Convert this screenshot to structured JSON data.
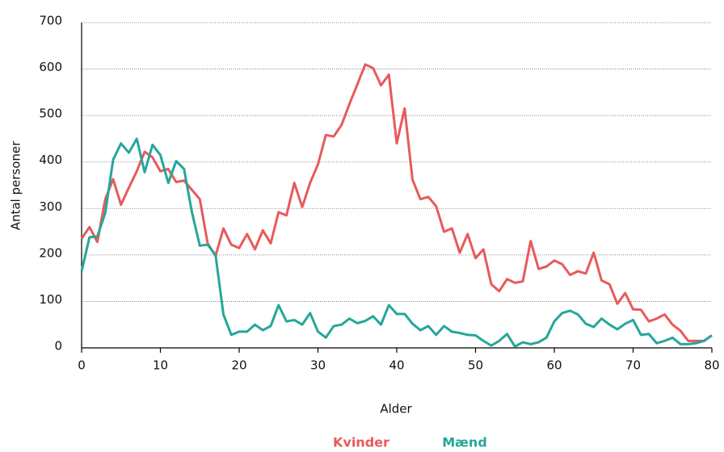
{
  "chart_data": {
    "type": "line",
    "x_label": "Alder",
    "y_label": "Antal personer",
    "x": [
      0,
      1,
      2,
      3,
      4,
      5,
      6,
      7,
      8,
      9,
      10,
      11,
      12,
      13,
      14,
      15,
      16,
      17,
      18,
      19,
      20,
      21,
      22,
      23,
      24,
      25,
      26,
      27,
      28,
      29,
      30,
      31,
      32,
      33,
      34,
      35,
      36,
      37,
      38,
      39,
      40,
      41,
      42,
      43,
      44,
      45,
      46,
      47,
      48,
      49,
      50,
      51,
      52,
      53,
      54,
      55,
      56,
      57,
      58,
      59,
      60,
      61,
      62,
      63,
      64,
      65,
      66,
      67,
      68,
      69,
      70,
      71,
      72,
      73,
      74,
      75,
      76,
      77,
      78,
      79,
      80
    ],
    "series": [
      {
        "name": "Kvinder",
        "color": "#e85a5a",
        "values": [
          235,
          260,
          228,
          320,
          363,
          308,
          345,
          380,
          422,
          410,
          380,
          385,
          357,
          360,
          340,
          320,
          225,
          198,
          257,
          222,
          215,
          245,
          212,
          253,
          225,
          292,
          285,
          355,
          303,
          355,
          395,
          458,
          455,
          480,
          525,
          567,
          610,
          602,
          565,
          588,
          440,
          515,
          362,
          320,
          325,
          305,
          250,
          257,
          205,
          245,
          193,
          212,
          137,
          122,
          148,
          140,
          143,
          230,
          170,
          175,
          188,
          180,
          157,
          165,
          160,
          205,
          145,
          137,
          95,
          118,
          83,
          82,
          57,
          63,
          72,
          50,
          37,
          15,
          15,
          15,
          27
        ]
      },
      {
        "name": "Mænd",
        "color": "#26a69a",
        "values": [
          165,
          238,
          240,
          290,
          405,
          440,
          420,
          450,
          378,
          437,
          415,
          355,
          402,
          385,
          292,
          220,
          222,
          200,
          72,
          28,
          35,
          35,
          50,
          38,
          47,
          92,
          57,
          60,
          50,
          75,
          35,
          22,
          47,
          50,
          63,
          53,
          58,
          68,
          50,
          92,
          73,
          73,
          52,
          38,
          47,
          28,
          47,
          35,
          32,
          28,
          27,
          15,
          5,
          15,
          30,
          3,
          12,
          8,
          12,
          22,
          57,
          75,
          80,
          72,
          52,
          45,
          63,
          50,
          40,
          52,
          60,
          28,
          30,
          10,
          15,
          22,
          8,
          8,
          10,
          15,
          27
        ]
      }
    ],
    "xlim": [
      0,
      80
    ],
    "xticks": [
      0,
      10,
      20,
      30,
      40,
      50,
      60,
      70,
      80
    ],
    "ylim": [
      0,
      700
    ],
    "yticks": [
      0,
      100,
      200,
      300,
      400,
      500,
      600,
      700
    ],
    "grid": true,
    "legend": "bottom"
  }
}
